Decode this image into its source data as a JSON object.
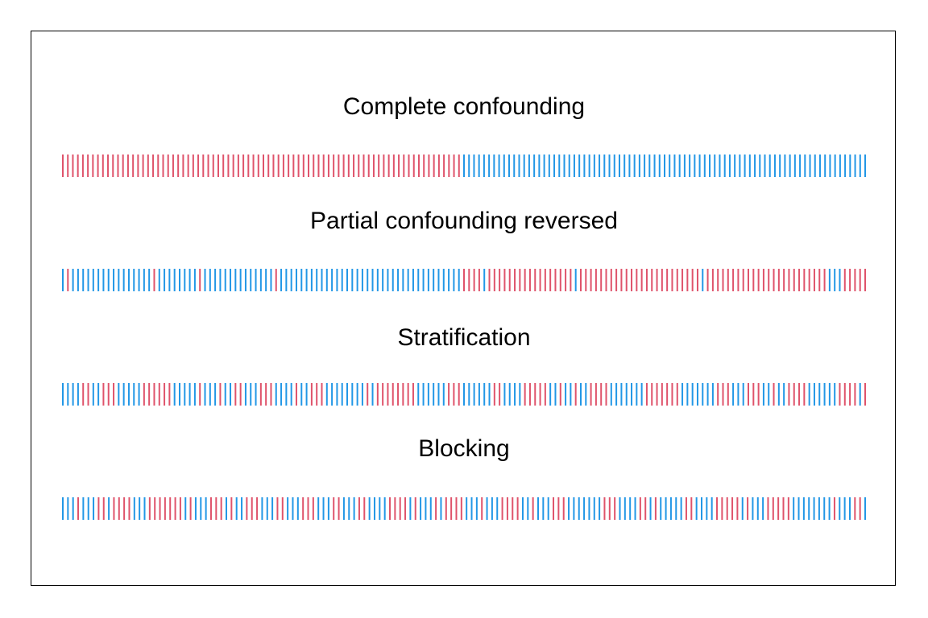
{
  "colors": {
    "a": "#DF536B",
    "b": "#2297E6",
    "frame": "#000000"
  },
  "rows": [
    {
      "title": "Complete confounding",
      "pattern": "AAAAAAAAAAAAAAAAAAAAAAAAAAAAAAAAAAAAAAAAAAAAAAAAAAAAAAAAAAAAAAAAAAAAAAAAAAAAAAAABBBBBBBBBBBBBBBBBBBBBBBBBBBBBBBBBBBBBBBBBBBBBBBBBBBBBBBBBBBBBBBBBBBBBBBBBBBBBBBBB"
    },
    {
      "title": "Partial confounding reversed",
      "pattern": "BABBBBBBBBBBBBBBBBABBBBBBBBABBBBBBBBBBBBBBABBBBBBBBBBBBBBBBBBBBBBBBBBBBBBBBBBBBAAAABAAAAAAAAAAAAAAAAABAAAAAAAAAAAAAAAAAAAAAAAABAAAAAAAAAAAAAAAAAAAAAAAABBBAAAAA"
    },
    {
      "title": "Stratification",
      "pattern": "BBBBAABBAAABBBBBAAAAAABBBBBABBBABBAABBBAAABBBBABBAAABBBBBBBBABAAAAAAAABBBBBBAAABBBBBBAABBBBAAAAABBABBABBAAAABBBBBBBAAAAAAABBBBBBBAAABBBAAABBABBAAAABBBBBBAAAABA"
    },
    {
      "title": "Blocking",
      "pattern": "BBBABBBAABAAAABBBAAAAAAABABBBAAABABBAAABBBAABBBAAABBBAABBBAABBBBAAAABABBBABAAAABBBABBBAAAABBABBBAAABBBBBBBAAABBBBAABABBBBBAABBBBAAAAABABBBAAAAABBBBBBBBABBBAAB"
    }
  ]
}
